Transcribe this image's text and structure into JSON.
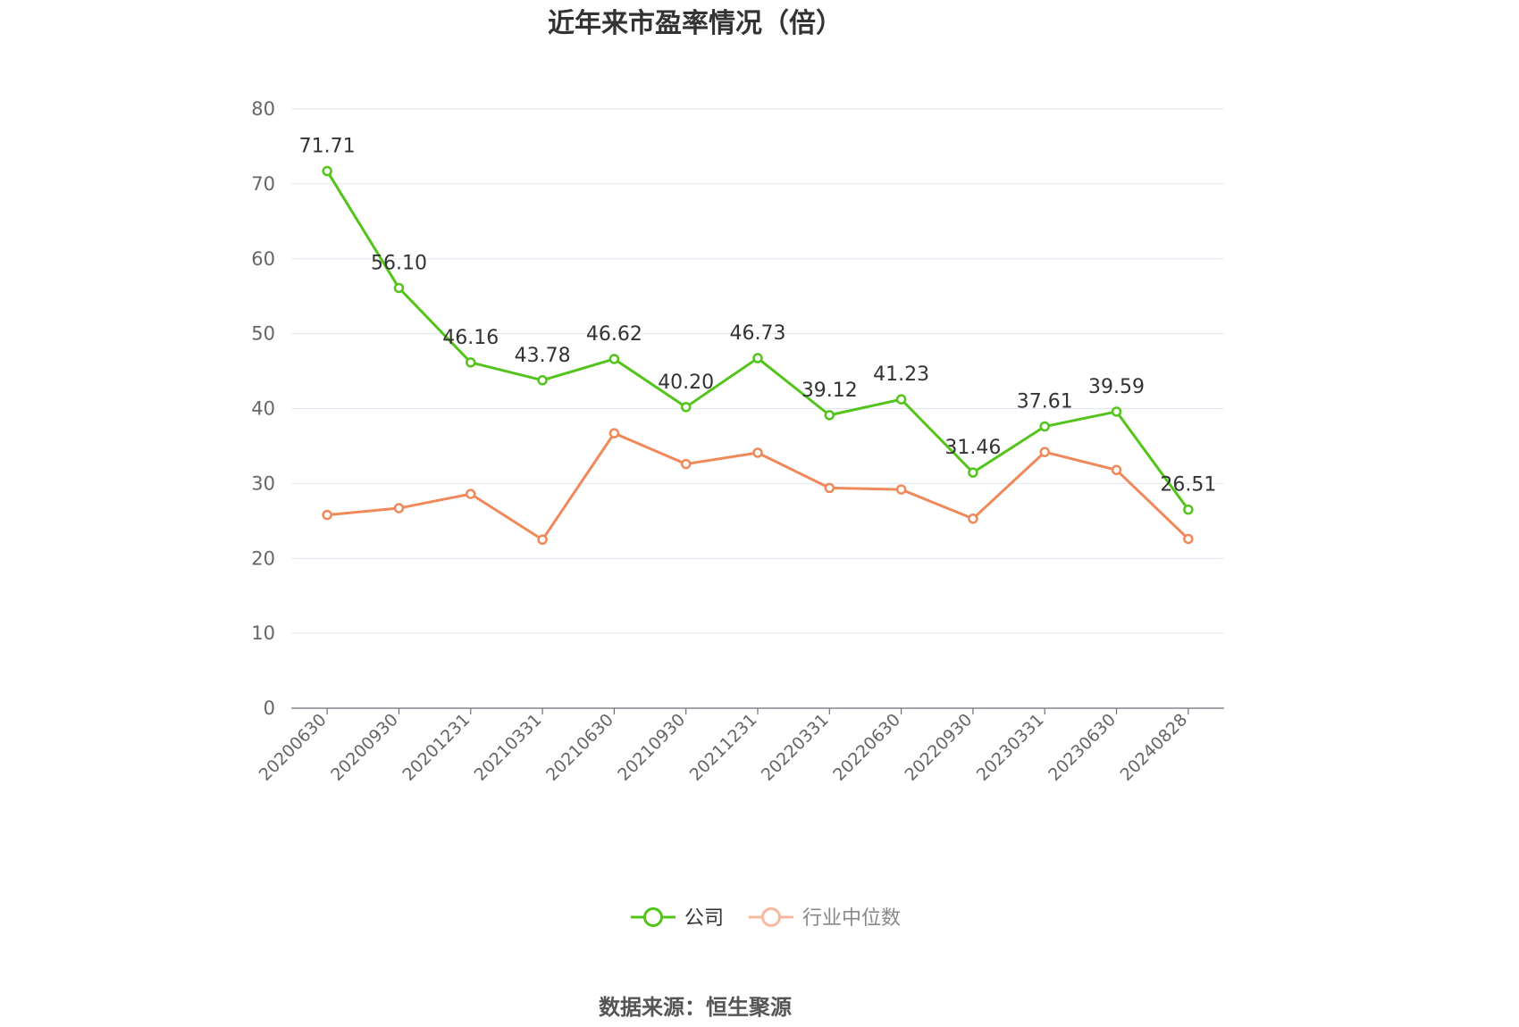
{
  "chart_data": {
    "type": "line",
    "title": "近年来市盈率情况（倍）",
    "source": "数据来源：恒生聚源",
    "categories": [
      "20200630",
      "20200930",
      "20201231",
      "20210331",
      "20210630",
      "20210930",
      "20211231",
      "20220331",
      "20220630",
      "20220930",
      "20230331",
      "20230630",
      "20240828"
    ],
    "ylim": [
      0,
      80
    ],
    "yticks": [
      0,
      10,
      20,
      30,
      40,
      50,
      60,
      70,
      80
    ],
    "grid": true,
    "legend_position": "bottom",
    "series": [
      {
        "name": "公司",
        "color": "#52c41a",
        "show_labels": true,
        "values": [
          71.71,
          56.1,
          46.16,
          43.78,
          46.62,
          40.2,
          46.73,
          39.12,
          41.23,
          31.46,
          37.61,
          39.59,
          26.51
        ],
        "labels": [
          "71.71",
          "56.10",
          "46.16",
          "43.78",
          "46.62",
          "40.20",
          "46.73",
          "39.12",
          "41.23",
          "31.46",
          "37.61",
          "39.59",
          "26.51"
        ]
      },
      {
        "name": "行业中位数",
        "color": "#f0885a",
        "legend_color": "#f7b89c",
        "show_labels": false,
        "values": [
          25.8,
          26.7,
          28.6,
          22.5,
          36.7,
          32.6,
          34.1,
          29.4,
          29.2,
          25.3,
          34.2,
          31.8,
          22.6
        ]
      }
    ]
  }
}
